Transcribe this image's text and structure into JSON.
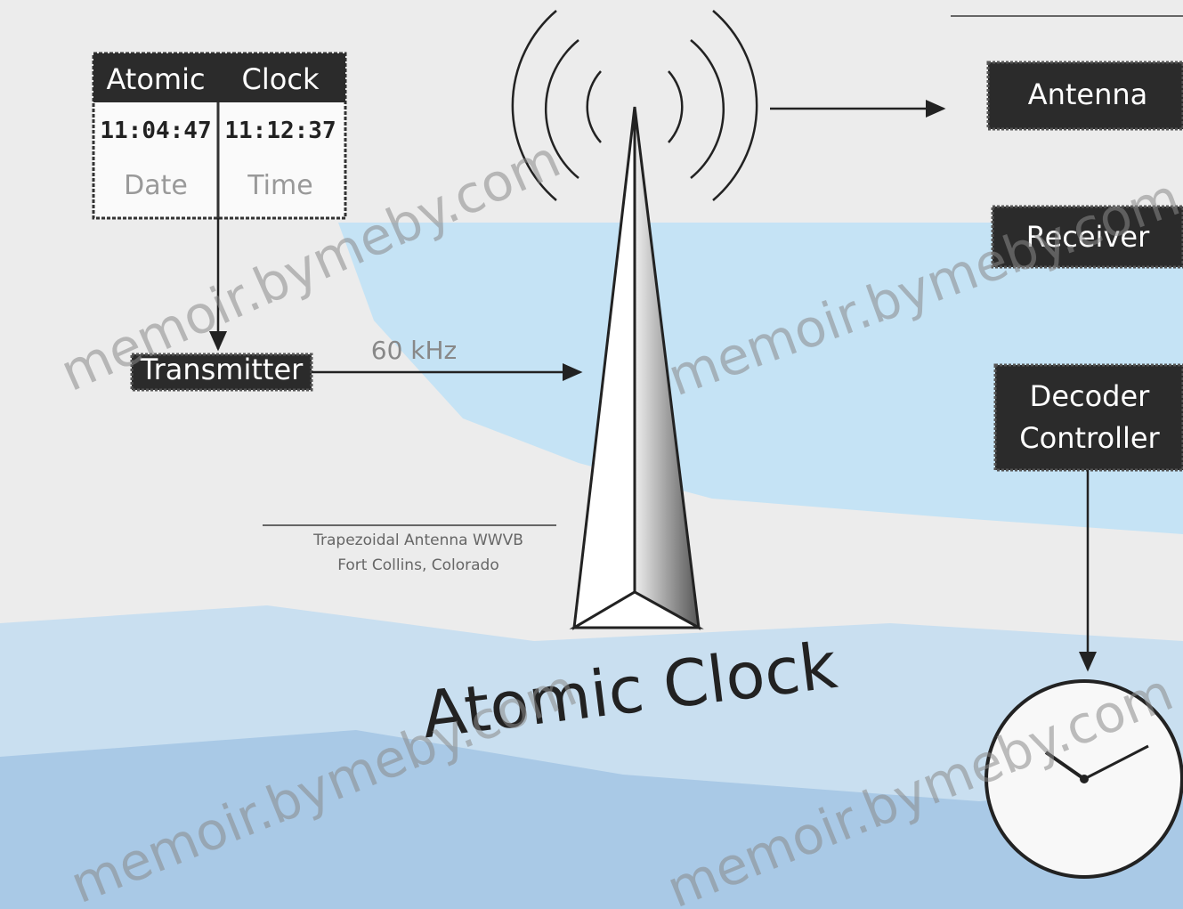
{
  "clock_panel": {
    "header": [
      "Atomic",
      "Clock"
    ],
    "readouts": [
      "11:04:47",
      "11:12:37"
    ],
    "labels": [
      "Date",
      "Time"
    ]
  },
  "transmitter": {
    "label": "Transmitter",
    "frequency": "60 kHz"
  },
  "tower": {
    "caption": [
      "Trapezoidal Antenna WWVB",
      "Fort Collins, Colorado"
    ],
    "title": "Atomic Clock"
  },
  "receiver_chain": [
    "Antenna",
    "Receiver",
    "Decoder",
    "Controller"
  ],
  "watermark": "memoir.bymeby.com"
}
